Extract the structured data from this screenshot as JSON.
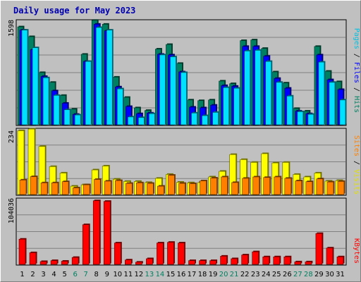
{
  "title": "Daily usage for May 2023",
  "colors": {
    "hits": "#008060",
    "files": "#0000ff",
    "pages": "#00e0ff",
    "visits": "#ffff00",
    "sites": "#ff8000",
    "kbytes": "#ff0000",
    "weekend_label": "#008060",
    "weekday_label": "#000000",
    "title": "#0000b0",
    "plot_bg": "#c0c0c0"
  },
  "chart_data": [
    {
      "type": "bar",
      "title": "Daily usage for May 2023",
      "ymax_label": "1598",
      "ymax": 1598,
      "legend": {
        "pages": "Pages",
        "files": "Files",
        "hits": "Hits",
        "sep": " / "
      },
      "categories": [
        "1",
        "2",
        "3",
        "4",
        "5",
        "6",
        "7",
        "8",
        "9",
        "10",
        "11",
        "12",
        "13",
        "14",
        "15",
        "16",
        "17",
        "18",
        "19",
        "20",
        "21",
        "22",
        "23",
        "24",
        "25",
        "26",
        "27",
        "28",
        "29",
        "30",
        "31"
      ],
      "series": [
        {
          "name": "Hits",
          "values": [
            1500,
            1350,
            800,
            650,
            450,
            240,
            1080,
            1600,
            1540,
            730,
            420,
            260,
            220,
            1160,
            1230,
            940,
            380,
            370,
            380,
            670,
            630,
            1290,
            1300,
            1170,
            810,
            640,
            250,
            210,
            1200,
            820,
            660
          ]
        },
        {
          "name": "Files",
          "values": [
            1450,
            1150,
            740,
            520,
            330,
            160,
            970,
            1540,
            1440,
            580,
            280,
            170,
            180,
            1080,
            1070,
            810,
            270,
            260,
            300,
            600,
            590,
            1200,
            1200,
            1050,
            710,
            560,
            210,
            170,
            1070,
            690,
            540
          ]
        },
        {
          "name": "Pages",
          "values": [
            1450,
            1180,
            720,
            450,
            230,
            150,
            970,
            1490,
            1450,
            550,
            120,
            110,
            170,
            1070,
            1040,
            800,
            180,
            140,
            190,
            570,
            560,
            1130,
            1140,
            970,
            650,
            440,
            200,
            160,
            960,
            650,
            380
          ]
        }
      ],
      "weekend_days": [
        "6",
        "7",
        "13",
        "14",
        "20",
        "21",
        "27",
        "28"
      ]
    },
    {
      "type": "bar",
      "ymax_label": "234",
      "ymax": 234,
      "legend": {
        "sites": "Sites",
        "visits": "Visits",
        "sep": " / "
      },
      "categories": [
        "1",
        "2",
        "3",
        "4",
        "5",
        "6",
        "7",
        "8",
        "9",
        "10",
        "11",
        "12",
        "13",
        "14",
        "15",
        "16",
        "17",
        "18",
        "19",
        "20",
        "21",
        "22",
        "23",
        "24",
        "25",
        "26",
        "27",
        "28",
        "29",
        "30",
        "31"
      ],
      "series": [
        {
          "name": "Visits",
          "values": [
            228,
            234,
            172,
            100,
            77,
            30,
            35,
            88,
            102,
            55,
            47,
            47,
            43,
            58,
            72,
            44,
            42,
            43,
            63,
            83,
            143,
            125,
            115,
            146,
            113,
            115,
            72,
            63,
            77,
            48,
            50
          ]
        },
        {
          "name": "Sites",
          "values": [
            52,
            64,
            42,
            42,
            46,
            24,
            35,
            54,
            48,
            50,
            40,
            42,
            40,
            30,
            69,
            40,
            39,
            49,
            59,
            63,
            43,
            58,
            63,
            61,
            63,
            58,
            49,
            46,
            56,
            45,
            47
          ]
        }
      ]
    },
    {
      "type": "bar",
      "ymax_label": "104036",
      "ymax": 104036,
      "legend": {
        "kbytes": "KBytes"
      },
      "categories": [
        "1",
        "2",
        "3",
        "4",
        "5",
        "6",
        "7",
        "8",
        "9",
        "10",
        "11",
        "12",
        "13",
        "14",
        "15",
        "16",
        "17",
        "18",
        "19",
        "20",
        "21",
        "22",
        "23",
        "24",
        "25",
        "26",
        "27",
        "28",
        "29",
        "30",
        "31"
      ],
      "series": [
        {
          "name": "KBytes",
          "values": [
            40000,
            18500,
            4500,
            6000,
            5000,
            11000,
            63000,
            101000,
            100000,
            34000,
            7000,
            3500,
            9000,
            34000,
            35000,
            34000,
            6000,
            6000,
            6000,
            13000,
            9000,
            15000,
            20000,
            12000,
            12000,
            12000,
            4000,
            4000,
            49000,
            26000,
            12000
          ]
        }
      ]
    }
  ]
}
